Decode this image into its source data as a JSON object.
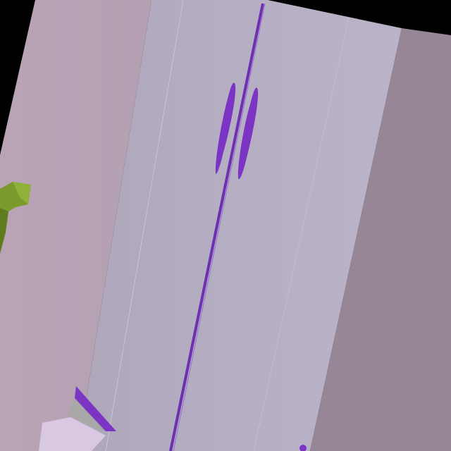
{
  "scene": {
    "description_free": true,
    "colors": {
      "background": "#000000",
      "left_wall": "#b7a2b3",
      "cabinet_front_left": "#b1a9bd",
      "cabinet_front_right": "#b8b0c4",
      "right_wall": "#968696",
      "handle": "#7b34c4",
      "seam": "#6e2fb0",
      "plant": "#7a9a2c",
      "plant_dark": "#5e7c1e",
      "floor_trim": "#a8a8a8"
    },
    "icons": [
      "wardrobe-door-handle-left",
      "wardrobe-door-handle-right",
      "plant-leaf"
    ]
  }
}
